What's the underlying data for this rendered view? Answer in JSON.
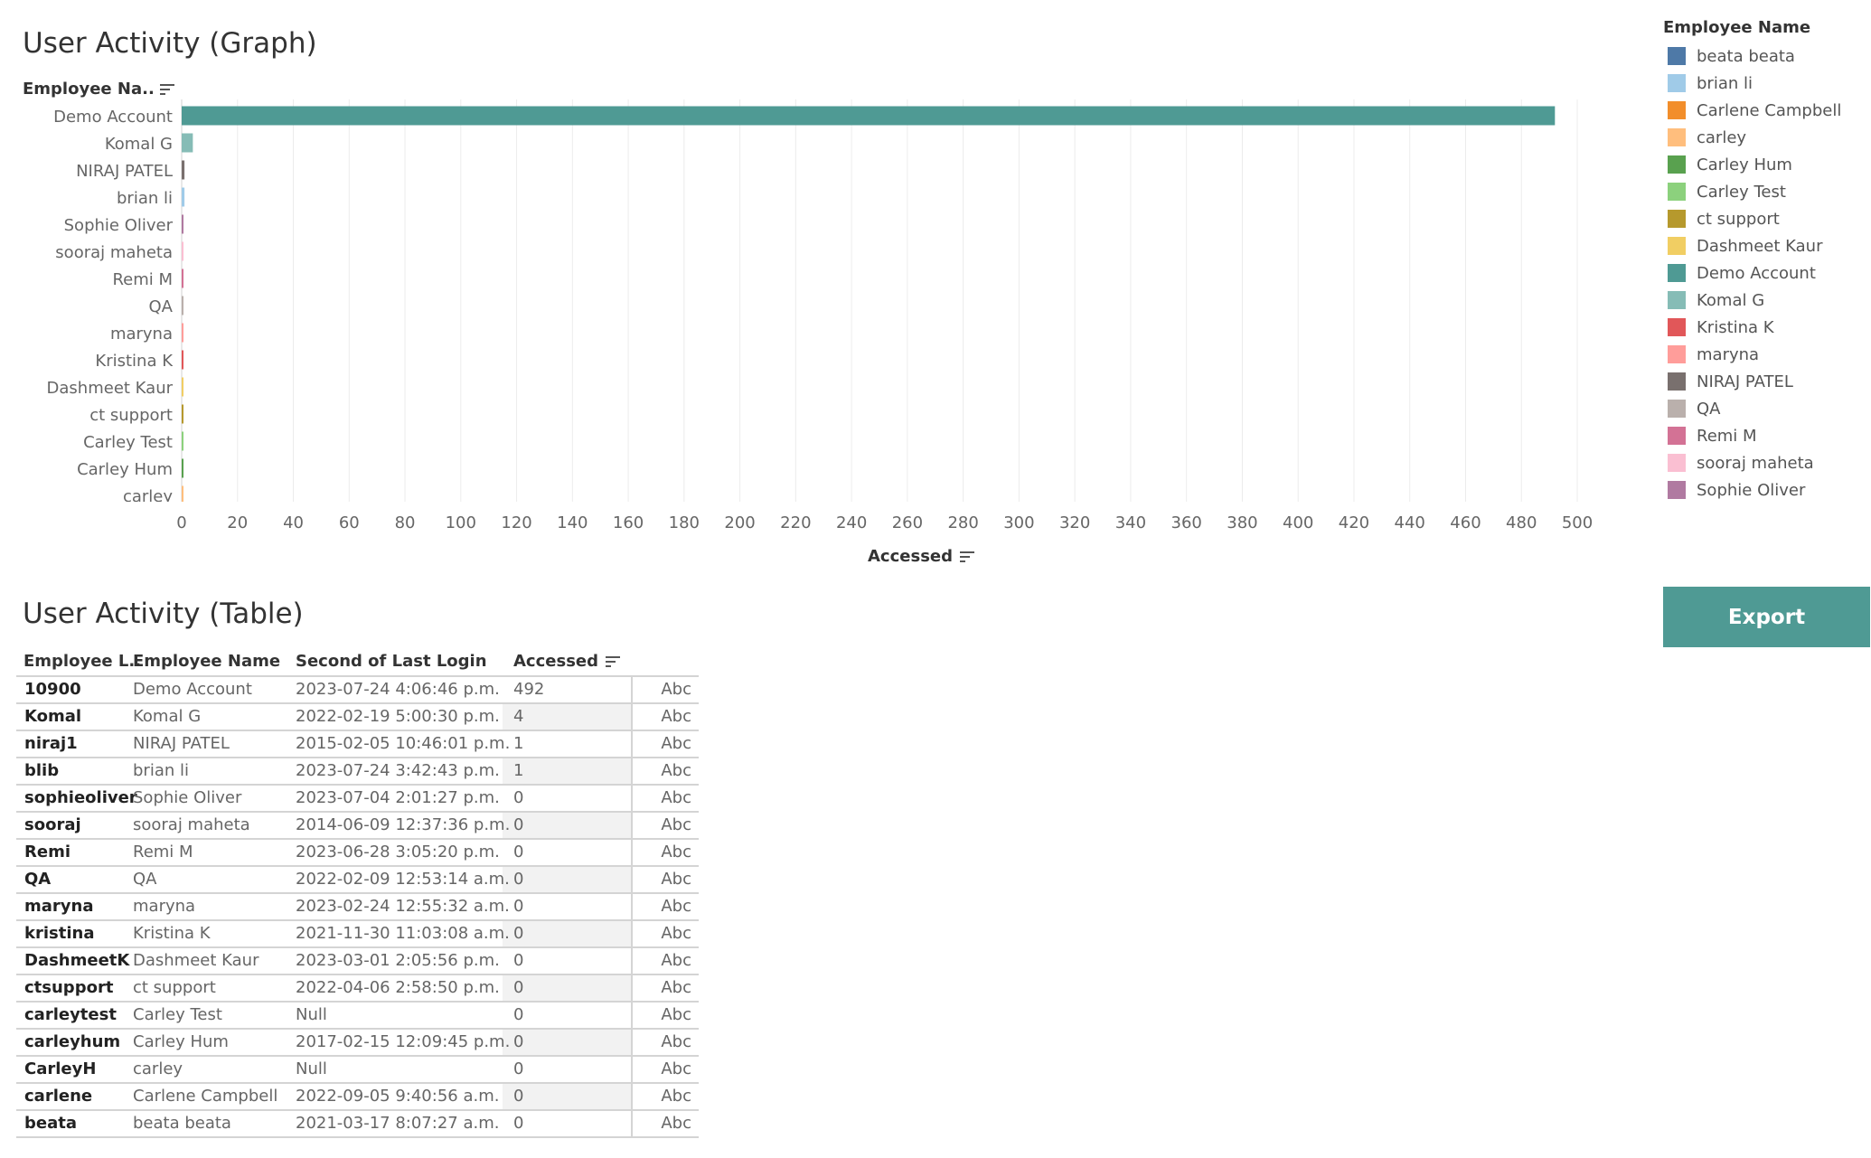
{
  "graph": {
    "title": "User Activity (Graph)",
    "y_field_label": "Employee Na..",
    "x_field_label": "Accessed"
  },
  "chart_data": {
    "type": "bar",
    "orientation": "horizontal",
    "xlabel": "Accessed",
    "ylabel": "Employee Na..",
    "xlim": [
      0,
      500
    ],
    "x_ticks": [
      0,
      20,
      40,
      60,
      80,
      100,
      120,
      140,
      160,
      180,
      200,
      220,
      240,
      260,
      280,
      300,
      320,
      340,
      360,
      380,
      400,
      420,
      440,
      460,
      480,
      500
    ],
    "grid": true,
    "categories": [
      "Demo Account",
      "Komal G",
      "NIRAJ PATEL",
      "brian li",
      "Sophie Oliver",
      "sooraj maheta",
      "Remi M",
      "QA",
      "maryna",
      "Kristina K",
      "Dashmeet Kaur",
      "ct support",
      "Carley Test",
      "Carley Hum",
      "carley"
    ],
    "values": [
      492,
      4,
      1,
      1,
      0,
      0,
      0,
      0,
      0,
      0,
      0,
      0,
      0,
      0,
      0
    ],
    "colors": [
      "#4f9a94",
      "#86bcb6",
      "#79706e",
      "#a0cbe8",
      "#b07aa1",
      "#fabfd2",
      "#d37295",
      "#bab0ac",
      "#ff9d9a",
      "#e15759",
      "#f1ce63",
      "#b6992d",
      "#8cd17d",
      "#59a14f",
      "#ffbe7d"
    ]
  },
  "legend": {
    "title": "Employee Name",
    "items": [
      {
        "label": "beata beata",
        "color": "#4e79a7"
      },
      {
        "label": "brian li",
        "color": "#a0cbe8"
      },
      {
        "label": "Carlene Campbell",
        "color": "#f28e2b"
      },
      {
        "label": "carley",
        "color": "#ffbe7d"
      },
      {
        "label": "Carley Hum",
        "color": "#59a14f"
      },
      {
        "label": "Carley Test",
        "color": "#8cd17d"
      },
      {
        "label": "ct support",
        "color": "#b6992d"
      },
      {
        "label": "Dashmeet Kaur",
        "color": "#f1ce63"
      },
      {
        "label": "Demo Account",
        "color": "#4f9a94"
      },
      {
        "label": "Komal G",
        "color": "#86bcb6"
      },
      {
        "label": "Kristina K",
        "color": "#e15759"
      },
      {
        "label": "maryna",
        "color": "#ff9d9a"
      },
      {
        "label": "NIRAJ PATEL",
        "color": "#79706e"
      },
      {
        "label": "QA",
        "color": "#bab0ac"
      },
      {
        "label": "Remi M",
        "color": "#d37295"
      },
      {
        "label": "sooraj maheta",
        "color": "#fabfd2"
      },
      {
        "label": "Sophie Oliver",
        "color": "#b07aa1"
      }
    ]
  },
  "export_button": {
    "label": "Export"
  },
  "table": {
    "title": "User Activity (Table)",
    "headers": {
      "login": "Employee L..",
      "name": "Employee Name",
      "second": "Second of Last Login",
      "accessed": "Accessed"
    },
    "rows": [
      {
        "login": "10900",
        "name": "Demo Account",
        "second": "2023-07-24 4:06:46 p.m.",
        "accessed": "492",
        "abc": "Abc"
      },
      {
        "login": "Komal",
        "name": "Komal G",
        "second": "2022-02-19 5:00:30 p.m.",
        "accessed": "4",
        "abc": "Abc"
      },
      {
        "login": "niraj1",
        "name": "NIRAJ PATEL",
        "second": "2015-02-05 10:46:01 p.m.",
        "accessed": "1",
        "abc": "Abc"
      },
      {
        "login": "blib",
        "name": "brian li",
        "second": "2023-07-24 3:42:43 p.m.",
        "accessed": "1",
        "abc": "Abc"
      },
      {
        "login": "sophieoliver",
        "name": "Sophie Oliver",
        "second": "2023-07-04 2:01:27 p.m.",
        "accessed": "0",
        "abc": "Abc"
      },
      {
        "login": "sooraj",
        "name": "sooraj maheta",
        "second": "2014-06-09 12:37:36 p.m.",
        "accessed": "0",
        "abc": "Abc"
      },
      {
        "login": "Remi",
        "name": "Remi M",
        "second": "2023-06-28 3:05:20 p.m.",
        "accessed": "0",
        "abc": "Abc"
      },
      {
        "login": "QA",
        "name": "QA",
        "second": "2022-02-09 12:53:14 a.m.",
        "accessed": "0",
        "abc": "Abc"
      },
      {
        "login": "maryna",
        "name": "maryna",
        "second": "2023-02-24 12:55:32 a.m.",
        "accessed": "0",
        "abc": "Abc"
      },
      {
        "login": "kristina",
        "name": "Kristina K",
        "second": "2021-11-30 11:03:08 a.m.",
        "accessed": "0",
        "abc": "Abc"
      },
      {
        "login": "DashmeetK",
        "name": "Dashmeet Kaur",
        "second": "2023-03-01 2:05:56 p.m.",
        "accessed": "0",
        "abc": "Abc"
      },
      {
        "login": "ctsupport",
        "name": "ct support",
        "second": "2022-04-06 2:58:50 p.m.",
        "accessed": "0",
        "abc": "Abc"
      },
      {
        "login": "carleytest",
        "name": "Carley Test",
        "second": "Null",
        "accessed": "0",
        "abc": "Abc"
      },
      {
        "login": "carleyhum",
        "name": "Carley Hum",
        "second": "2017-02-15 12:09:45 p.m.",
        "accessed": "0",
        "abc": "Abc"
      },
      {
        "login": "CarleyH",
        "name": "carley",
        "second": "Null",
        "accessed": "0",
        "abc": "Abc"
      },
      {
        "login": "carlene",
        "name": "Carlene Campbell",
        "second": "2022-09-05 9:40:56 a.m.",
        "accessed": "0",
        "abc": "Abc"
      },
      {
        "login": "beata",
        "name": "beata beata",
        "second": "2021-03-17 8:07:27 a.m.",
        "accessed": "0",
        "abc": "Abc"
      }
    ]
  }
}
